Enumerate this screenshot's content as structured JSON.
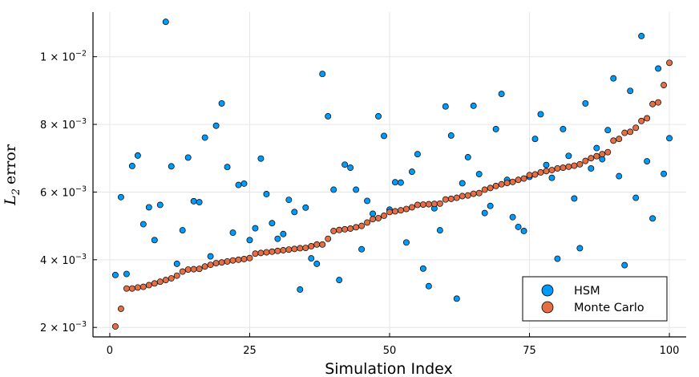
{
  "chart_data": {
    "type": "scatter",
    "title": "",
    "xlabel": "Simulation Index",
    "ylabel_base": "L",
    "ylabel_sub": "2",
    "ylabel_word": "error",
    "xlim": [
      -3,
      103
    ],
    "ylim": [
      0.00172,
      0.01132
    ],
    "grid": true,
    "legend_position": "bottom-right",
    "x_ticks": [
      0,
      25,
      50,
      75,
      100
    ],
    "x_tick_labels": [
      "0",
      "25",
      "50",
      "75",
      "100"
    ],
    "y_ticks": [
      0.002,
      0.004,
      0.006,
      0.008,
      0.01
    ],
    "y_tick_labels": [
      {
        "base": "2 × 10",
        "exp": "−3"
      },
      {
        "base": "4 × 10",
        "exp": "−3"
      },
      {
        "base": "6 × 10",
        "exp": "−3"
      },
      {
        "base": "8 × 10",
        "exp": "−3"
      },
      {
        "base": "1 × 10",
        "exp": "−2"
      }
    ],
    "x": [
      1,
      2,
      3,
      4,
      5,
      6,
      7,
      8,
      9,
      10,
      11,
      12,
      13,
      14,
      15,
      16,
      17,
      18,
      19,
      20,
      21,
      22,
      23,
      24,
      25,
      26,
      27,
      28,
      29,
      30,
      31,
      32,
      33,
      34,
      35,
      36,
      37,
      38,
      39,
      40,
      41,
      42,
      43,
      44,
      45,
      46,
      47,
      48,
      49,
      50,
      51,
      52,
      53,
      54,
      55,
      56,
      57,
      58,
      59,
      60,
      61,
      62,
      63,
      64,
      65,
      66,
      67,
      68,
      69,
      70,
      71,
      72,
      73,
      74,
      75,
      76,
      77,
      78,
      79,
      80,
      81,
      82,
      83,
      84,
      85,
      86,
      87,
      88,
      89,
      90,
      91,
      92,
      93,
      94,
      95,
      96,
      97,
      98,
      99,
      100
    ],
    "series": [
      {
        "name": "HSM",
        "color": "#009af9",
        "values": [
          0.00355,
          0.00585,
          0.00358,
          0.00677,
          0.00708,
          0.00505,
          0.00555,
          0.00458,
          0.00562,
          0.01103,
          0.00676,
          0.00388,
          0.00487,
          0.00702,
          0.00573,
          0.0057,
          0.00761,
          0.0041,
          0.00796,
          0.00862,
          0.00674,
          0.0048,
          0.00621,
          0.00625,
          0.00458,
          0.00493,
          0.00699,
          0.00594,
          0.00508,
          0.00462,
          0.00476,
          0.00577,
          0.00541,
          0.00312,
          0.00554,
          0.00404,
          0.00388,
          0.00949,
          0.00824,
          0.00607,
          0.0034,
          0.00681,
          0.00672,
          0.00607,
          0.00431,
          0.00574,
          0.00536,
          0.00824,
          0.00766,
          0.00548,
          0.00629,
          0.00628,
          0.00451,
          0.0066,
          0.00712,
          0.00374,
          0.00322,
          0.00552,
          0.00487,
          0.00853,
          0.00767,
          0.00285,
          0.00626,
          0.00703,
          0.00855,
          0.00653,
          0.00538,
          0.00559,
          0.00786,
          0.0089,
          0.00636,
          0.00526,
          0.00497,
          0.00485,
          0.00645,
          0.00757,
          0.0083,
          0.0068,
          0.00642,
          0.00403,
          0.00786,
          0.00707,
          0.00581,
          0.00434,
          0.00862,
          0.0067,
          0.0073,
          0.00697,
          0.00783,
          0.00936,
          0.00647,
          0.00384,
          0.00899,
          0.00583,
          0.01061,
          0.00691,
          0.00522,
          0.00965,
          0.00654,
          0.00759
        ]
      },
      {
        "name": "Monte Carlo",
        "color": "#e26f46",
        "values": [
          0.00203,
          0.00255,
          0.00315,
          0.00315,
          0.00318,
          0.0032,
          0.00325,
          0.0033,
          0.00335,
          0.0034,
          0.00345,
          0.00353,
          0.00365,
          0.00371,
          0.00372,
          0.00373,
          0.0038,
          0.00385,
          0.0039,
          0.00392,
          0.00395,
          0.00398,
          0.004,
          0.00402,
          0.00405,
          0.00418,
          0.0042,
          0.00422,
          0.00424,
          0.00426,
          0.00428,
          0.0043,
          0.00432,
          0.00434,
          0.00435,
          0.0044,
          0.00445,
          0.00445,
          0.00462,
          0.00485,
          0.00488,
          0.0049,
          0.00492,
          0.00496,
          0.005,
          0.0051,
          0.0052,
          0.00523,
          0.0053,
          0.00541,
          0.00543,
          0.00546,
          0.0055,
          0.00555,
          0.00562,
          0.00563,
          0.00564,
          0.00565,
          0.00566,
          0.00578,
          0.0058,
          0.00583,
          0.00588,
          0.0059,
          0.00595,
          0.00597,
          0.00607,
          0.00612,
          0.00618,
          0.00623,
          0.00627,
          0.0063,
          0.00636,
          0.0064,
          0.0065,
          0.00652,
          0.00658,
          0.00662,
          0.00665,
          0.0067,
          0.00672,
          0.00675,
          0.00678,
          0.00682,
          0.00692,
          0.007,
          0.00706,
          0.00712,
          0.00718,
          0.00752,
          0.00757,
          0.00775,
          0.00778,
          0.0079,
          0.0081,
          0.00818,
          0.0086,
          0.00865,
          0.00916,
          0.00982
        ]
      }
    ]
  }
}
